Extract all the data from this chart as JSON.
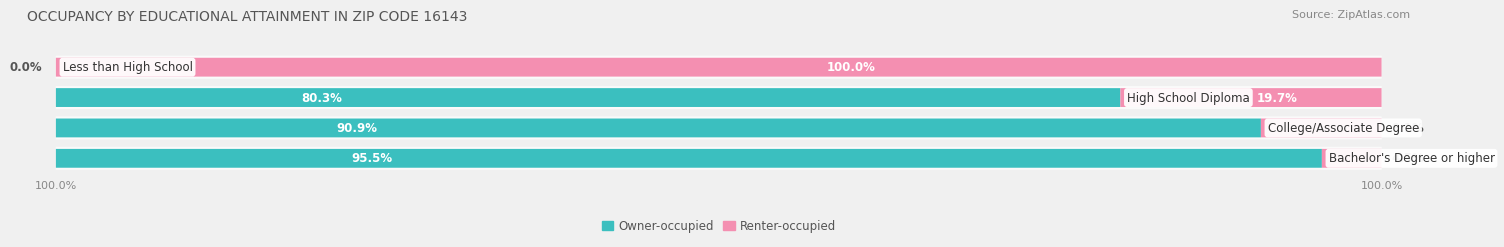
{
  "title": "OCCUPANCY BY EDUCATIONAL ATTAINMENT IN ZIP CODE 16143",
  "source": "Source: ZipAtlas.com",
  "categories": [
    "Less than High School",
    "High School Diploma",
    "College/Associate Degree",
    "Bachelor's Degree or higher"
  ],
  "owner_pct": [
    0.0,
    80.3,
    90.9,
    95.5
  ],
  "renter_pct": [
    100.0,
    19.7,
    9.1,
    4.5
  ],
  "owner_color": "#3bbfbf",
  "renter_color": "#f48fb1",
  "bg_color": "#f0f0f0",
  "row_bg_color": "#fafafa",
  "title_fontsize": 10,
  "source_fontsize": 8,
  "label_fontsize": 8.5,
  "axis_label_fontsize": 8,
  "bar_height": 0.62,
  "legend_owner": "Owner-occupied",
  "legend_renter": "Renter-occupied",
  "xlim_left": -105,
  "xlim_right": 105,
  "owner_label_color": "white",
  "renter_label_color": "#555555",
  "cat_label_color": "#333333"
}
